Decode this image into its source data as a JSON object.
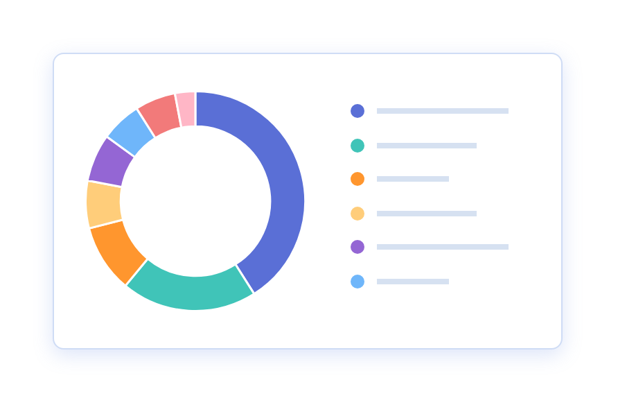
{
  "chart_data": {
    "type": "donut",
    "categories": [
      null,
      null,
      null,
      null,
      null,
      null,
      null,
      null
    ],
    "values": [
      41,
      20,
      10,
      7,
      7,
      6,
      6,
      3
    ],
    "colors": [
      "#5a6fd6",
      "#40c4b8",
      "#ff962e",
      "#ffcd7a",
      "#9466d4",
      "#6fb6fa",
      "#f27a7a",
      "#ffb6c6"
    ]
  }
}
